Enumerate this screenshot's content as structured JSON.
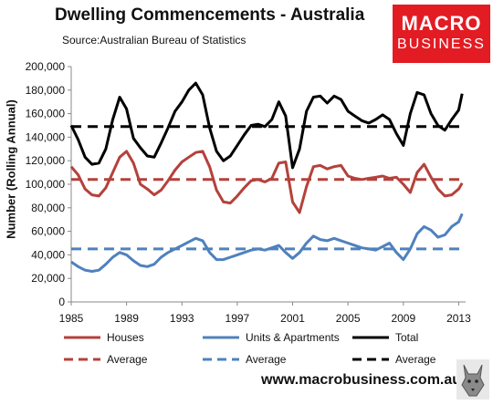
{
  "header": {
    "title": "Dwelling Commencements - Australia",
    "source": "Source:Australian Bureau of Statistics",
    "logo_line1": "MACRO",
    "logo_line2": "BUSINESS",
    "website": "www.macrobusiness.com.au"
  },
  "colors": {
    "houses": "#b5413b",
    "units": "#4f81bd",
    "total": "#000000",
    "logo_bg": "#e31b23"
  },
  "chart_data": {
    "type": "line",
    "title": "Dwelling Commencements - Australia",
    "ylabel": "Number (Rolling Annual)",
    "xlabel": "",
    "ylim": [
      0,
      200000
    ],
    "xlim": [
      1985,
      2013.5
    ],
    "yticks": [
      "0",
      "20,000",
      "40,000",
      "60,000",
      "80,000",
      "100,000",
      "120,000",
      "140,000",
      "160,000",
      "180,000",
      "200,000"
    ],
    "xticks": [
      "1985",
      "1989",
      "1993",
      "1997",
      "2001",
      "2005",
      "2009",
      "2013"
    ],
    "grid": false,
    "legend": "bottom",
    "series": [
      {
        "name": "Houses",
        "style": "solid",
        "color": "#b5413b",
        "x": [
          1985.0,
          1985.5,
          1986.0,
          1986.5,
          1987.0,
          1987.5,
          1988.0,
          1988.5,
          1989.0,
          1989.5,
          1990.0,
          1990.5,
          1991.0,
          1991.5,
          1992.0,
          1992.5,
          1993.0,
          1993.5,
          1994.0,
          1994.5,
          1995.0,
          1995.5,
          1996.0,
          1996.5,
          1997.0,
          1997.5,
          1998.0,
          1998.5,
          1999.0,
          1999.5,
          2000.0,
          2000.5,
          2001.0,
          2001.5,
          2002.0,
          2002.5,
          2003.0,
          2003.5,
          2004.0,
          2004.5,
          2005.0,
          2005.5,
          2006.0,
          2006.5,
          2007.0,
          2007.5,
          2008.0,
          2008.5,
          2009.0,
          2009.5,
          2010.0,
          2010.5,
          2011.0,
          2011.5,
          2012.0,
          2012.5,
          2013.0,
          2013.25
        ],
        "y": [
          115000,
          108000,
          96000,
          91000,
          90000,
          97000,
          110000,
          123000,
          128000,
          118000,
          100000,
          96000,
          91000,
          95000,
          103000,
          112000,
          119000,
          123000,
          127000,
          128000,
          115000,
          95000,
          85000,
          84000,
          90000,
          97000,
          103000,
          104000,
          102000,
          105000,
          118000,
          119000,
          85000,
          76000,
          98000,
          115000,
          116000,
          113000,
          115000,
          116000,
          107000,
          105000,
          104000,
          105000,
          106000,
          107000,
          105000,
          106000,
          100000,
          93000,
          110000,
          117000,
          106000,
          96000,
          90000,
          91000,
          96000,
          101000
        ]
      },
      {
        "name": "Units & Apartments",
        "style": "solid",
        "color": "#4f81bd",
        "x": [
          1985.0,
          1985.5,
          1986.0,
          1986.5,
          1987.0,
          1987.5,
          1988.0,
          1988.5,
          1989.0,
          1989.5,
          1990.0,
          1990.5,
          1991.0,
          1991.5,
          1992.0,
          1992.5,
          1993.0,
          1993.5,
          1994.0,
          1994.5,
          1995.0,
          1995.5,
          1996.0,
          1996.5,
          1997.0,
          1997.5,
          1998.0,
          1998.5,
          1999.0,
          1999.5,
          2000.0,
          2000.5,
          2001.0,
          2001.5,
          2002.0,
          2002.5,
          2003.0,
          2003.5,
          2004.0,
          2004.5,
          2005.0,
          2005.5,
          2006.0,
          2006.5,
          2007.0,
          2007.5,
          2008.0,
          2008.5,
          2009.0,
          2009.5,
          2010.0,
          2010.5,
          2011.0,
          2011.5,
          2012.0,
          2012.5,
          2013.0,
          2013.25
        ],
        "y": [
          34000,
          30000,
          27000,
          26000,
          27000,
          32000,
          38000,
          42000,
          40000,
          35000,
          31000,
          30000,
          32000,
          38000,
          42000,
          45000,
          48000,
          51000,
          54000,
          52000,
          42000,
          36000,
          36000,
          38000,
          40000,
          42000,
          44000,
          45000,
          44000,
          46000,
          48000,
          42000,
          37000,
          42000,
          50000,
          56000,
          53000,
          52000,
          54000,
          52000,
          50000,
          48000,
          46000,
          45000,
          44000,
          47000,
          50000,
          42000,
          36000,
          45000,
          58000,
          64000,
          61000,
          55000,
          57000,
          64000,
          68000,
          75000
        ]
      },
      {
        "name": "Total",
        "style": "solid",
        "color": "#000000",
        "x": [
          1985.0,
          1985.5,
          1986.0,
          1986.5,
          1987.0,
          1987.5,
          1988.0,
          1988.5,
          1989.0,
          1989.5,
          1990.0,
          1990.5,
          1991.0,
          1991.5,
          1992.0,
          1992.5,
          1993.0,
          1993.5,
          1994.0,
          1994.5,
          1995.0,
          1995.5,
          1996.0,
          1996.5,
          1997.0,
          1997.5,
          1998.0,
          1998.5,
          1999.0,
          1999.5,
          2000.0,
          2000.5,
          2001.0,
          2001.5,
          2002.0,
          2002.5,
          2003.0,
          2003.5,
          2004.0,
          2004.5,
          2005.0,
          2005.5,
          2006.0,
          2006.5,
          2007.0,
          2007.5,
          2008.0,
          2008.5,
          2009.0,
          2009.5,
          2010.0,
          2010.5,
          2011.0,
          2011.5,
          2012.0,
          2012.5,
          2013.0,
          2013.25
        ],
        "y": [
          150000,
          138000,
          123000,
          117000,
          118000,
          130000,
          155000,
          174000,
          164000,
          139000,
          131000,
          124000,
          123000,
          135000,
          148000,
          162000,
          170000,
          180000,
          186000,
          176000,
          148000,
          128000,
          120000,
          124000,
          133000,
          142000,
          150000,
          151000,
          149000,
          155000,
          170000,
          158000,
          114000,
          130000,
          162000,
          174000,
          175000,
          169000,
          175000,
          172000,
          162000,
          158000,
          154000,
          152000,
          155000,
          159000,
          155000,
          143000,
          133000,
          160000,
          178000,
          176000,
          160000,
          150000,
          146000,
          155000,
          163000,
          177000
        ]
      },
      {
        "name": "Average",
        "style": "dashed",
        "color": "#b5413b",
        "x": [
          1985,
          2013.5
        ],
        "y": [
          104000,
          104000
        ]
      },
      {
        "name": "Average",
        "style": "dashed",
        "color": "#4f81bd",
        "x": [
          1985,
          2013.5
        ],
        "y": [
          45000,
          45000
        ]
      },
      {
        "name": "Average",
        "style": "dashed",
        "color": "#000000",
        "x": [
          1985,
          2013.5
        ],
        "y": [
          149000,
          149000
        ]
      }
    ]
  }
}
